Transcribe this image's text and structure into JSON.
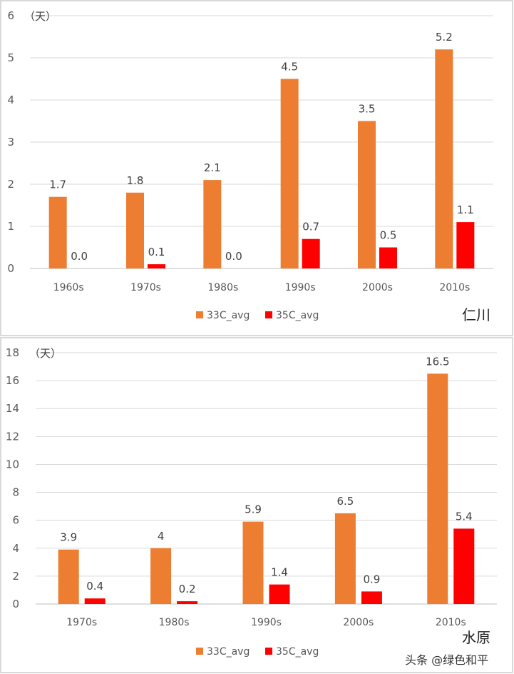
{
  "chart_data": [
    {
      "type": "bar",
      "location_label": "仁川",
      "unit_label": "（天）",
      "categories": [
        "1960s",
        "1970s",
        "1980s",
        "1990s",
        "2000s",
        "2010s"
      ],
      "series": [
        {
          "name": "33C_avg",
          "color": "#ED7D31",
          "values": [
            1.7,
            1.8,
            2.1,
            4.5,
            3.5,
            5.2
          ]
        },
        {
          "name": "35C_avg",
          "color": "#FF0000",
          "values": [
            0.0,
            0.1,
            0.0,
            0.7,
            0.5,
            1.1
          ]
        }
      ],
      "ylim": [
        0,
        6
      ],
      "yticks": [
        0,
        1,
        2,
        3,
        4,
        5,
        6
      ],
      "grid": true,
      "legend": "bottom"
    },
    {
      "type": "bar",
      "location_label": "水原",
      "unit_label": "（天）",
      "categories": [
        "1970s",
        "1980s",
        "1990s",
        "2000s",
        "2010s"
      ],
      "series": [
        {
          "name": "33C_avg",
          "color": "#ED7D31",
          "values": [
            3.9,
            4,
            5.9,
            6.5,
            16.5
          ]
        },
        {
          "name": "35C_avg",
          "color": "#FF0000",
          "values": [
            0.4,
            0.2,
            1.4,
            0.9,
            5.4
          ]
        }
      ],
      "ylim": [
        0,
        18
      ],
      "yticks": [
        0,
        2,
        4,
        6,
        8,
        10,
        12,
        14,
        16,
        18
      ],
      "grid": true,
      "legend": "bottom"
    }
  ],
  "watermark": "头条 @绿色和平"
}
